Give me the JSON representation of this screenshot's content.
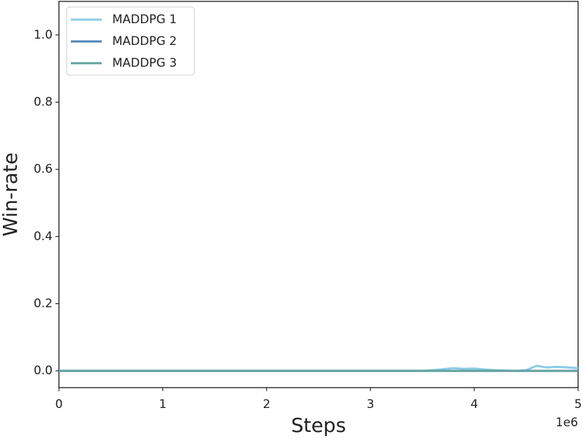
{
  "chart_data": {
    "type": "line",
    "ylabel": "Win-rate",
    "xlabel": "Steps",
    "x_offset_label": "1e6",
    "x": [
      0,
      0.1,
      0.2,
      0.3,
      0.4,
      0.5,
      0.6,
      0.7,
      0.8,
      0.9,
      1,
      1.1,
      1.2,
      1.3,
      1.4,
      1.5,
      1.6,
      1.7,
      1.8,
      1.9,
      2,
      2.1,
      2.2,
      2.3,
      2.4,
      2.5,
      2.6,
      2.7,
      2.8,
      2.9,
      3,
      3.1,
      3.2,
      3.3,
      3.4,
      3.5,
      3.6,
      3.7,
      3.8,
      3.9,
      4,
      4.1,
      4.2,
      4.3,
      4.4,
      4.5,
      4.6,
      4.7,
      4.8,
      4.9,
      5
    ],
    "series": [
      {
        "name": "MADDPG 1",
        "color": "#89cce6",
        "values": [
          0,
          0,
          0,
          0,
          0,
          0,
          0,
          0,
          0,
          0,
          0,
          0,
          0,
          0,
          0,
          0,
          0,
          0,
          0,
          0,
          0,
          0,
          0,
          0,
          0,
          0,
          0,
          0,
          0,
          0,
          0,
          0,
          0,
          0,
          0,
          0,
          0.002,
          0.005,
          0.008,
          0.006,
          0.007,
          0.004,
          0.002,
          0.001,
          0,
          0.002,
          0.015,
          0.01,
          0.012,
          0.01,
          0.008
        ]
      },
      {
        "name": "MADDPG 2",
        "color": "#4f82b8",
        "values": [
          0,
          0,
          0,
          0,
          0,
          0,
          0,
          0,
          0,
          0,
          0,
          0,
          0,
          0,
          0,
          0,
          0,
          0,
          0,
          0,
          0,
          0,
          0,
          0,
          0,
          0,
          0,
          0,
          0,
          0,
          0,
          0,
          0,
          0,
          0,
          0,
          0,
          0,
          0,
          0,
          0,
          0,
          0,
          0,
          0,
          0,
          0,
          0,
          0,
          0,
          0
        ]
      },
      {
        "name": "MADDPG 3",
        "color": "#62a39c",
        "values": [
          0,
          0,
          0,
          0,
          0,
          0,
          0,
          0,
          0,
          0,
          0,
          0,
          0,
          0,
          0,
          0,
          0,
          0,
          0,
          0,
          0,
          0,
          0,
          0,
          0,
          0,
          0,
          0,
          0,
          0,
          0,
          0,
          0,
          0,
          0,
          0,
          0,
          0,
          0,
          0,
          0,
          0,
          0,
          0,
          0,
          0,
          0,
          0,
          0,
          0,
          0
        ]
      }
    ],
    "xlim": [
      0,
      5
    ],
    "xticks": [
      0,
      1,
      2,
      3,
      4,
      5
    ],
    "ylim": [
      -0.05,
      1.1
    ],
    "yticks": [
      {
        "value": 0,
        "label": "0.0"
      },
      0.2,
      0.4,
      0.6,
      0.8,
      {
        "value": 1,
        "label": "1.0"
      }
    ],
    "legend": "upper-left",
    "grid": false
  }
}
